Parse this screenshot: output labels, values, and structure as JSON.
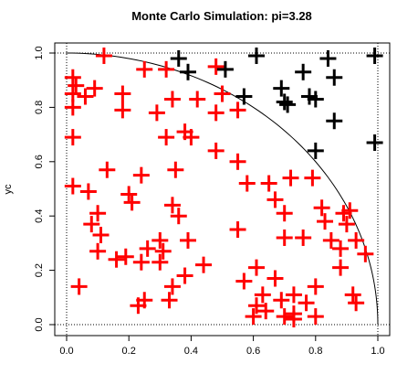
{
  "chart_data": {
    "type": "scatter",
    "title": "Monte Carlo Simulation: pi=3.28",
    "xlabel": "",
    "ylabel": "yc",
    "xlim": [
      0,
      1
    ],
    "ylim": [
      0,
      1
    ],
    "x_ticks": [
      "0.0",
      "0.2",
      "0.4",
      "0.6",
      "0.8",
      "1.0"
    ],
    "y_ticks": [
      "0.0",
      "0.2",
      "0.4",
      "0.6",
      "0.8",
      "1.0"
    ],
    "marker": "+",
    "grid": false,
    "reference_lines": {
      "x": [
        0,
        1
      ],
      "y": [
        0,
        1
      ],
      "style": "dotted"
    },
    "curve": "quarter circle of radius 1 centered at origin",
    "colors": {
      "inside": "#ff0000",
      "outside": "#000000",
      "axes": "#000000"
    },
    "series": [
      {
        "color": "#ff0000",
        "points": [
          [
            0.12,
            0.99
          ],
          [
            0.25,
            0.94
          ],
          [
            0.32,
            0.94
          ],
          [
            0.48,
            0.95
          ],
          [
            0.02,
            0.91
          ],
          [
            0.03,
            0.88
          ],
          [
            0.09,
            0.87
          ],
          [
            0.06,
            0.84
          ],
          [
            0.02,
            0.85
          ],
          [
            0.18,
            0.85
          ],
          [
            0.34,
            0.83
          ],
          [
            0.42,
            0.83
          ],
          [
            0.5,
            0.85
          ],
          [
            0.02,
            0.8
          ],
          [
            0.18,
            0.79
          ],
          [
            0.29,
            0.78
          ],
          [
            0.48,
            0.78
          ],
          [
            0.55,
            0.79
          ],
          [
            0.02,
            0.69
          ],
          [
            0.38,
            0.71
          ],
          [
            0.4,
            0.69
          ],
          [
            0.32,
            0.69
          ],
          [
            0.48,
            0.64
          ],
          [
            0.55,
            0.6
          ],
          [
            0.13,
            0.57
          ],
          [
            0.24,
            0.55
          ],
          [
            0.35,
            0.57
          ],
          [
            0.65,
            0.52
          ],
          [
            0.58,
            0.52
          ],
          [
            0.72,
            0.54
          ],
          [
            0.79,
            0.54
          ],
          [
            0.02,
            0.51
          ],
          [
            0.07,
            0.49
          ],
          [
            0.2,
            0.48
          ],
          [
            0.21,
            0.45
          ],
          [
            0.34,
            0.44
          ],
          [
            0.67,
            0.46
          ],
          [
            0.82,
            0.43
          ],
          [
            0.89,
            0.41
          ],
          [
            0.91,
            0.42
          ],
          [
            0.1,
            0.41
          ],
          [
            0.36,
            0.4
          ],
          [
            0.7,
            0.41
          ],
          [
            0.83,
            0.38
          ],
          [
            0.9,
            0.37
          ],
          [
            0.08,
            0.37
          ],
          [
            0.11,
            0.33
          ],
          [
            0.3,
            0.31
          ],
          [
            0.39,
            0.31
          ],
          [
            0.55,
            0.35
          ],
          [
            0.7,
            0.32
          ],
          [
            0.76,
            0.32
          ],
          [
            0.85,
            0.31
          ],
          [
            0.93,
            0.31
          ],
          [
            0.1,
            0.27
          ],
          [
            0.26,
            0.28
          ],
          [
            0.31,
            0.27
          ],
          [
            0.88,
            0.28
          ],
          [
            0.96,
            0.26
          ],
          [
            0.16,
            0.24
          ],
          [
            0.19,
            0.25
          ],
          [
            0.24,
            0.23
          ],
          [
            0.3,
            0.23
          ],
          [
            0.44,
            0.22
          ],
          [
            0.61,
            0.21
          ],
          [
            0.88,
            0.21
          ],
          [
            0.38,
            0.18
          ],
          [
            0.57,
            0.16
          ],
          [
            0.67,
            0.17
          ],
          [
            0.04,
            0.14
          ],
          [
            0.34,
            0.14
          ],
          [
            0.8,
            0.14
          ],
          [
            0.63,
            0.11
          ],
          [
            0.73,
            0.11
          ],
          [
            0.92,
            0.11
          ],
          [
            0.25,
            0.09
          ],
          [
            0.33,
            0.09
          ],
          [
            0.69,
            0.09
          ],
          [
            0.77,
            0.08
          ],
          [
            0.93,
            0.08
          ],
          [
            0.23,
            0.07
          ],
          [
            0.61,
            0.07
          ],
          [
            0.64,
            0.05
          ],
          [
            0.73,
            0.04
          ],
          [
            0.7,
            0.03
          ],
          [
            0.6,
            0.03
          ],
          [
            0.73,
            0.02
          ],
          [
            0.8,
            0.03
          ]
        ]
      },
      {
        "color": "#000000",
        "points": [
          [
            0.36,
            0.98
          ],
          [
            0.39,
            0.93
          ],
          [
            0.51,
            0.94
          ],
          [
            0.61,
            0.99
          ],
          [
            0.76,
            0.93
          ],
          [
            0.84,
            0.98
          ],
          [
            0.99,
            0.99
          ],
          [
            0.86,
            0.91
          ],
          [
            0.69,
            0.87
          ],
          [
            0.57,
            0.84
          ],
          [
            0.7,
            0.82
          ],
          [
            0.71,
            0.81
          ],
          [
            0.78,
            0.84
          ],
          [
            0.8,
            0.83
          ],
          [
            0.86,
            0.75
          ],
          [
            0.99,
            0.67
          ],
          [
            0.8,
            0.64
          ]
        ]
      }
    ]
  }
}
